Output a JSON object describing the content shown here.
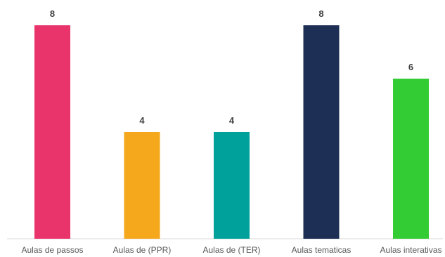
{
  "chart_data": {
    "type": "bar",
    "categories": [
      "Aulas de passos",
      "Aulas de (PPR)",
      "Aulas de (TER)",
      "Aulas tematicas",
      "Aulas interativas"
    ],
    "values": [
      8,
      4,
      4,
      8,
      6
    ],
    "colors": [
      "#e8336b",
      "#f5a81c",
      "#00a19a",
      "#1d2f55",
      "#34cc34"
    ],
    "ylim": [
      0,
      8
    ],
    "grid": false,
    "legend": "none",
    "data_labels": true
  }
}
